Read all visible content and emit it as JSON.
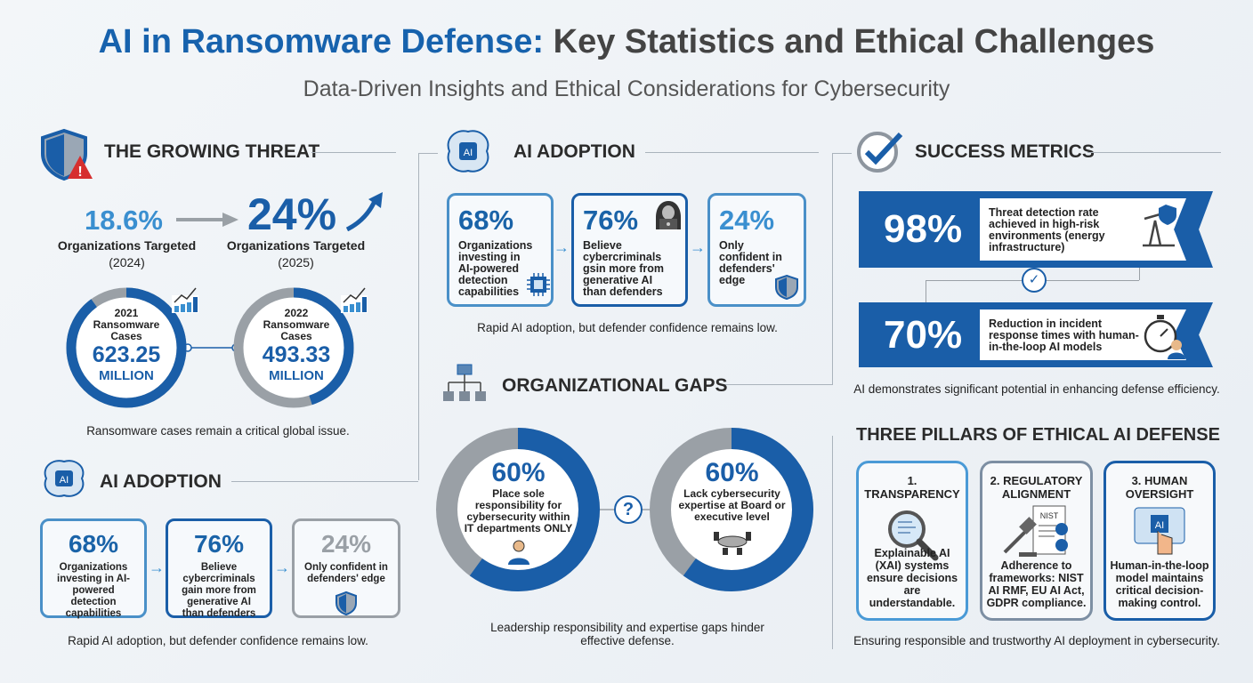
{
  "header": {
    "title_accent": "AI in Ransomware Defense:",
    "title_rest": " Key Statistics and Ethical Challenges",
    "subtitle": "Data-Driven Insights and Ethical Considerations for Cybersecurity"
  },
  "growing_threat": {
    "heading": "THE GROWING THREAT",
    "icon": "shield-warning-icon",
    "stat1": {
      "value": "18.6%",
      "label": "Organizations Targeted",
      "year": "(2024)"
    },
    "stat2": {
      "value": "24%",
      "label": "Organizations Targeted",
      "year": "(2025)"
    },
    "rings": [
      {
        "year": "2021",
        "label1": "Ransomware",
        "label2": "Cases",
        "value": "623.25",
        "unit": "MILLION",
        "fill": 0.9
      },
      {
        "year": "2022",
        "label1": "Ransomware",
        "label2": "Cases",
        "value": "493.33",
        "unit": "MILLION",
        "fill": 0.45
      }
    ],
    "caption": "Ransomware cases remain a critical global issue."
  },
  "ai_adoption_left": {
    "heading": "AI ADOPTION",
    "icon": "ai-brain-icon",
    "cards": [
      {
        "value": "68%",
        "text": "Organizations investing in AI-powered detection capabilities"
      },
      {
        "value": "76%",
        "text": "Believe cybercriminals gain more from generative AI than defenders"
      },
      {
        "value": "24%",
        "text": "Only confident in defenders' edge"
      }
    ],
    "caption": "Rapid AI adoption, but defender confidence remains low."
  },
  "ai_adoption_mid": {
    "heading": "AI ADOPTION",
    "icon": "ai-brain-icon",
    "cards": [
      {
        "value": "68%",
        "text": "Organizations investing in AI-powered detection capabilities"
      },
      {
        "value": "76%",
        "text": "Believe cybercriminals gsin more from generative AI than defenders"
      },
      {
        "value": "24%",
        "text": "Only confident in defenders' edge"
      }
    ],
    "caption": "Rapid AI adoption, but defender confidence remains low."
  },
  "org_gaps": {
    "heading": "ORGANIZATIONAL GAPS",
    "icon": "org-chart-icon",
    "rings": [
      {
        "value": "60%",
        "text": "Place sole responsibility for cybersecurity within IT departments ONLY",
        "fill": 0.6
      },
      {
        "value": "60%",
        "text": "Lack cybersecurity expertise at Board or executive level",
        "fill": 0.6
      }
    ],
    "connector": "?",
    "caption": "Leadership responsibility and expertise gaps hinder effective defense."
  },
  "success": {
    "heading": "SUCCESS METRICS",
    "icon": "checkmark-icon",
    "metrics": [
      {
        "value": "98%",
        "text": "Threat detection rate achieved in high-risk environments (energy infrastructure)"
      },
      {
        "value": "70%",
        "text": "Reduction in incident response times with human-in-the-loop AI models"
      }
    ],
    "caption": "AI demonstrates significant potential in enhancing defense efficiency."
  },
  "pillars": {
    "heading": "THREE PILLARS OF ETHICAL AI DEFENSE",
    "items": [
      {
        "title": "1. TRANSPARENCY",
        "text": "Explainable AI (XAI) systems ensure decisions are understandable."
      },
      {
        "title": "2. REGULATORY ALIGNMENT",
        "text": "Adherence to frameworks: NIST AI RMF, EU AI Act, GDPR compliance.",
        "badge": "NIST"
      },
      {
        "title": "3. HUMAN OVERSIGHT",
        "text": "Human-in-the-loop model maintains critical decision-making control.",
        "badge": "AI"
      }
    ],
    "caption": "Ensuring responsible and trustworthy AI deployment in cybersecurity."
  },
  "colors": {
    "dark_blue": "#1a5ea8",
    "light_blue": "#3a8fd0",
    "gray": "#9aa0a6",
    "warning_red": "#d62f2f"
  }
}
